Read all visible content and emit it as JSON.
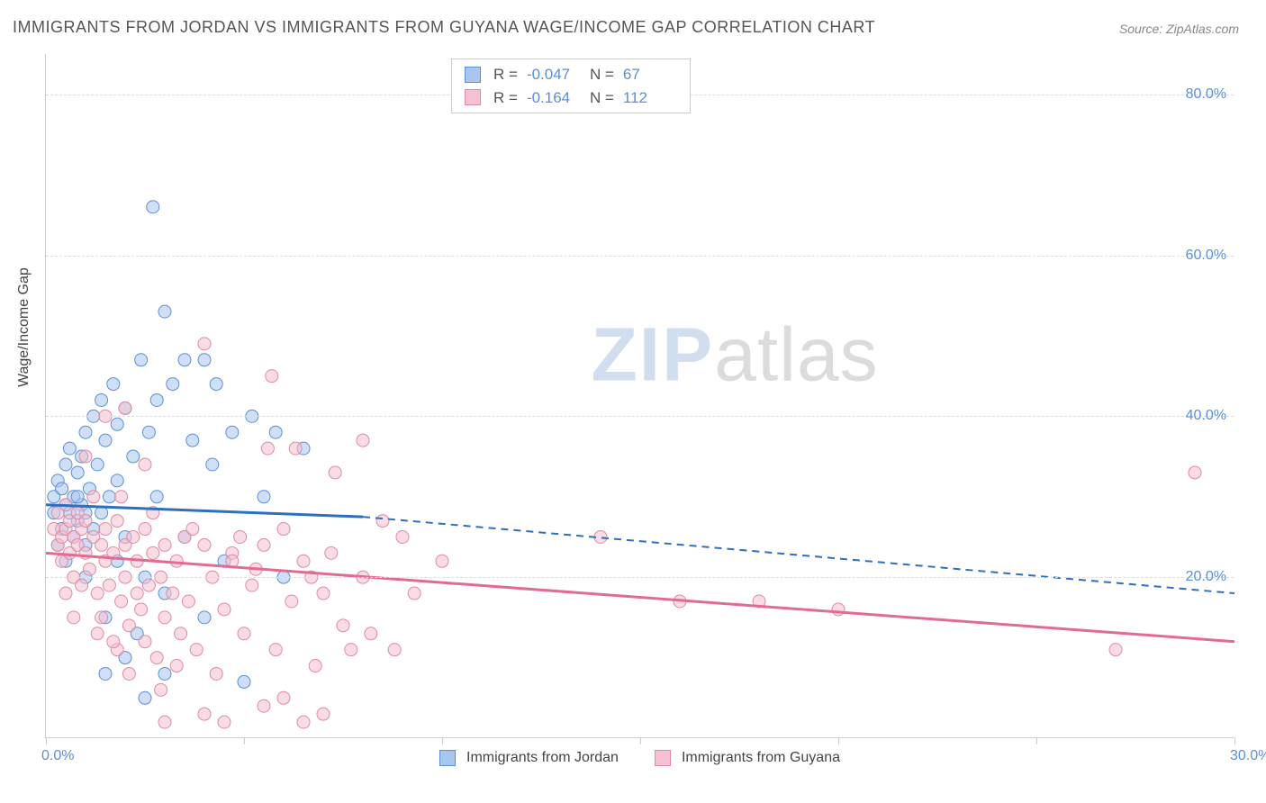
{
  "title": "IMMIGRANTS FROM JORDAN VS IMMIGRANTS FROM GUYANA WAGE/INCOME GAP CORRELATION CHART",
  "source_label": "Source: ZipAtlas.com",
  "yaxis_label": "Wage/Income Gap",
  "watermark": {
    "part1": "ZIP",
    "part2": "atlas"
  },
  "chart": {
    "type": "scatter-with-regression",
    "background_color": "#ffffff",
    "grid_color": "#dddddd",
    "axis_color": "#cccccc",
    "label_color": "#5b8fd6",
    "xlim": [
      0,
      30
    ],
    "ylim": [
      0,
      85
    ],
    "xticks": [
      0,
      5,
      10,
      15,
      20,
      25,
      30
    ],
    "xtick_labels": [
      "0.0%",
      "",
      "",
      "",
      "",
      "",
      "30.0%"
    ],
    "yticks": [
      20,
      40,
      60,
      80
    ],
    "ytick_labels": [
      "20.0%",
      "40.0%",
      "60.0%",
      "80.0%"
    ],
    "marker_radius": 7,
    "marker_opacity": 0.55,
    "line_width": 3,
    "series": [
      {
        "name": "Immigrants from Jordan",
        "color_fill": "#a8c6ee",
        "color_stroke": "#5b8fd6",
        "line_color": "#2f6fc0",
        "R": "-0.047",
        "N": "67",
        "regression": {
          "x1": 0,
          "y1": 29,
          "x2_solid": 8,
          "y2_solid": 27.5,
          "x2": 30,
          "y2": 18
        },
        "points": [
          [
            0.2,
            28
          ],
          [
            0.2,
            30
          ],
          [
            0.3,
            32
          ],
          [
            0.4,
            26
          ],
          [
            0.4,
            31
          ],
          [
            0.5,
            29
          ],
          [
            0.5,
            34
          ],
          [
            0.6,
            28
          ],
          [
            0.6,
            36
          ],
          [
            0.7,
            30
          ],
          [
            0.7,
            25
          ],
          [
            0.8,
            27
          ],
          [
            0.8,
            33
          ],
          [
            0.9,
            29
          ],
          [
            0.9,
            35
          ],
          [
            1.0,
            38
          ],
          [
            1.0,
            24
          ],
          [
            1.1,
            31
          ],
          [
            1.2,
            40
          ],
          [
            1.2,
            26
          ],
          [
            1.3,
            34
          ],
          [
            1.4,
            28
          ],
          [
            1.4,
            42
          ],
          [
            1.5,
            37
          ],
          [
            1.5,
            15
          ],
          [
            1.6,
            30
          ],
          [
            1.7,
            44
          ],
          [
            1.8,
            22
          ],
          [
            1.8,
            39
          ],
          [
            2.0,
            41
          ],
          [
            2.0,
            25
          ],
          [
            2.2,
            35
          ],
          [
            2.3,
            13
          ],
          [
            2.4,
            47
          ],
          [
            2.5,
            20
          ],
          [
            2.6,
            38
          ],
          [
            2.7,
            66
          ],
          [
            2.8,
            30
          ],
          [
            3.0,
            53
          ],
          [
            3.0,
            18
          ],
          [
            3.2,
            44
          ],
          [
            3.5,
            25
          ],
          [
            3.7,
            37
          ],
          [
            4.0,
            47
          ],
          [
            4.0,
            15
          ],
          [
            4.2,
            34
          ],
          [
            4.5,
            22
          ],
          [
            4.7,
            38
          ],
          [
            5.0,
            7
          ],
          [
            5.2,
            40
          ],
          [
            5.5,
            30
          ],
          [
            5.8,
            38
          ],
          [
            6.0,
            20
          ],
          [
            6.5,
            36
          ],
          [
            2.0,
            10
          ],
          [
            3.0,
            8
          ],
          [
            1.5,
            8
          ],
          [
            2.5,
            5
          ],
          [
            1.0,
            20
          ],
          [
            0.5,
            22
          ],
          [
            0.3,
            24
          ],
          [
            1.8,
            32
          ],
          [
            2.8,
            42
          ],
          [
            3.5,
            47
          ],
          [
            4.3,
            44
          ],
          [
            1.0,
            28
          ],
          [
            0.8,
            30
          ]
        ]
      },
      {
        "name": "Immigrants from Guyana",
        "color_fill": "#f5c0cf",
        "color_stroke": "#e08aa3",
        "line_color": "#e36b8f",
        "R": "-0.164",
        "N": "112",
        "regression": {
          "x1": 0,
          "y1": 23,
          "x2_solid": 30,
          "y2_solid": 12,
          "x2": 30,
          "y2": 12
        },
        "points": [
          [
            0.2,
            26
          ],
          [
            0.3,
            24
          ],
          [
            0.3,
            28
          ],
          [
            0.4,
            25
          ],
          [
            0.4,
            22
          ],
          [
            0.5,
            26
          ],
          [
            0.5,
            29
          ],
          [
            0.6,
            23
          ],
          [
            0.6,
            27
          ],
          [
            0.7,
            25
          ],
          [
            0.7,
            20
          ],
          [
            0.8,
            28
          ],
          [
            0.8,
            24
          ],
          [
            0.9,
            26
          ],
          [
            0.9,
            19
          ],
          [
            1.0,
            23
          ],
          [
            1.0,
            27
          ],
          [
            1.1,
            21
          ],
          [
            1.2,
            25
          ],
          [
            1.2,
            30
          ],
          [
            1.3,
            18
          ],
          [
            1.4,
            24
          ],
          [
            1.4,
            15
          ],
          [
            1.5,
            22
          ],
          [
            1.5,
            26
          ],
          [
            1.6,
            19
          ],
          [
            1.7,
            23
          ],
          [
            1.8,
            11
          ],
          [
            1.8,
            27
          ],
          [
            1.9,
            17
          ],
          [
            2.0,
            24
          ],
          [
            2.0,
            20
          ],
          [
            2.1,
            14
          ],
          [
            2.2,
            25
          ],
          [
            2.3,
            22
          ],
          [
            2.4,
            16
          ],
          [
            2.5,
            26
          ],
          [
            2.5,
            12
          ],
          [
            2.6,
            19
          ],
          [
            2.7,
            23
          ],
          [
            2.8,
            10
          ],
          [
            2.9,
            20
          ],
          [
            3.0,
            24
          ],
          [
            3.0,
            15
          ],
          [
            3.2,
            18
          ],
          [
            3.3,
            22
          ],
          [
            3.4,
            13
          ],
          [
            3.5,
            25
          ],
          [
            3.6,
            17
          ],
          [
            3.8,
            11
          ],
          [
            4.0,
            24
          ],
          [
            4.0,
            49
          ],
          [
            4.2,
            20
          ],
          [
            4.5,
            16
          ],
          [
            4.7,
            23
          ],
          [
            4.9,
            25
          ],
          [
            5.0,
            13
          ],
          [
            5.2,
            19
          ],
          [
            5.5,
            24
          ],
          [
            5.6,
            36
          ],
          [
            5.7,
            45
          ],
          [
            5.8,
            11
          ],
          [
            6.0,
            26
          ],
          [
            6.2,
            17
          ],
          [
            6.3,
            36
          ],
          [
            6.5,
            22
          ],
          [
            6.8,
            9
          ],
          [
            7.0,
            18
          ],
          [
            7.2,
            23
          ],
          [
            7.3,
            33
          ],
          [
            7.5,
            14
          ],
          [
            8.0,
            20
          ],
          [
            8.0,
            37
          ],
          [
            8.2,
            13
          ],
          [
            8.5,
            27
          ],
          [
            8.8,
            11
          ],
          [
            9.0,
            25
          ],
          [
            9.3,
            18
          ],
          [
            10.0,
            22
          ],
          [
            14.0,
            25
          ],
          [
            16.0,
            17
          ],
          [
            18.0,
            17
          ],
          [
            20.0,
            16
          ],
          [
            27.0,
            11
          ],
          [
            29.0,
            33
          ],
          [
            3.0,
            2
          ],
          [
            4.0,
            3
          ],
          [
            4.5,
            2
          ],
          [
            5.5,
            4
          ],
          [
            6.0,
            5
          ],
          [
            6.5,
            2
          ],
          [
            7.0,
            3
          ],
          [
            7.7,
            11
          ],
          [
            2.0,
            41
          ],
          [
            2.5,
            34
          ],
          [
            1.5,
            40
          ],
          [
            1.0,
            35
          ],
          [
            0.5,
            18
          ],
          [
            0.7,
            15
          ],
          [
            2.3,
            18
          ],
          [
            3.3,
            9
          ],
          [
            4.3,
            8
          ],
          [
            5.3,
            21
          ],
          [
            6.7,
            20
          ],
          [
            1.9,
            30
          ],
          [
            2.7,
            28
          ],
          [
            3.7,
            26
          ],
          [
            4.7,
            22
          ],
          [
            1.3,
            13
          ],
          [
            1.7,
            12
          ],
          [
            2.1,
            8
          ],
          [
            2.9,
            6
          ]
        ]
      }
    ]
  },
  "bottom_legend": [
    {
      "label": "Immigrants from Jordan",
      "fill": "#a8c6ee",
      "stroke": "#5b8fd6"
    },
    {
      "label": "Immigrants from Guyana",
      "fill": "#f5c0cf",
      "stroke": "#e08aa3"
    }
  ]
}
